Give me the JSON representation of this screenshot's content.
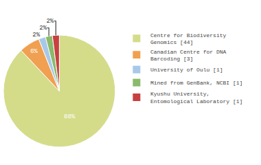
{
  "chart_data": {
    "type": "pie",
    "categories": [
      "Centre for Biodiversity\nGenomics [44]",
      "Canadian Centre for DNA\nBarcoding [3]",
      "University of Oulu [1]",
      "Mined from GenBank, NCBI [1]",
      "Kyushu University,\nEntomological Laboratory [1]"
    ],
    "values": [
      88,
      6,
      2,
      2,
      2
    ],
    "value_labels": [
      "88%",
      "6%",
      "2%",
      "2%",
      "2%"
    ],
    "colors": [
      "#d4dc8a",
      "#f0a050",
      "#a8c8e8",
      "#8aba6a",
      "#c84040"
    ],
    "data_labels": true,
    "legend": "upper right"
  }
}
